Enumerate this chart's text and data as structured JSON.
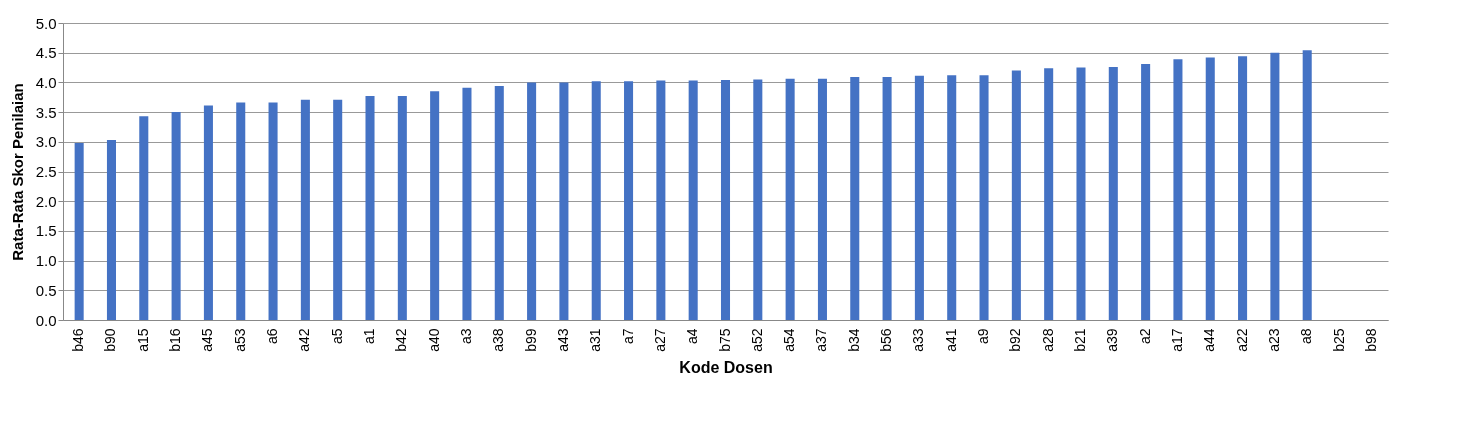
{
  "chart_data": {
    "type": "bar",
    "xlabel": "Kode Dosen",
    "ylabel": "Rata-Rata Skor Penilaian",
    "categories": [
      "b46",
      "b90",
      "a15",
      "b16",
      "a45",
      "a53",
      "a6",
      "a42",
      "a5",
      "a1",
      "b42",
      "a40",
      "a3",
      "a38",
      "b99",
      "a43",
      "a31",
      "a7",
      "a27",
      "a4",
      "b75",
      "a52",
      "a54",
      "a37",
      "b34",
      "b56",
      "a33",
      "a41",
      "a9",
      "b92",
      "a28",
      "b21",
      "a39",
      "a2",
      "a17",
      "a44",
      "a22",
      "a23",
      "a8",
      "b25",
      "b98"
    ],
    "values": [
      2.98,
      3.03,
      3.43,
      3.5,
      3.61,
      3.66,
      3.66,
      3.71,
      3.71,
      3.77,
      3.77,
      3.85,
      3.91,
      3.94,
      4.0,
      4.0,
      4.02,
      4.02,
      4.03,
      4.03,
      4.04,
      4.05,
      4.06,
      4.06,
      4.09,
      4.09,
      4.11,
      4.12,
      4.12,
      4.2,
      4.24,
      4.25,
      4.26,
      4.31,
      4.39,
      4.42,
      4.44,
      4.5,
      4.54,
      null,
      null
    ],
    "color": "#4472c4",
    "ylim": [
      0,
      5
    ],
    "yticks": [
      {
        "value": 0,
        "label": "0.0"
      },
      {
        "value": 0.5,
        "label": "0.5"
      },
      {
        "value": 1,
        "label": "1.0"
      },
      {
        "value": 1.5,
        "label": "1.5"
      },
      {
        "value": 2,
        "label": "2.0"
      },
      {
        "value": 2.5,
        "label": "2.5"
      },
      {
        "value": 3,
        "label": "3.0"
      },
      {
        "value": 3.5,
        "label": "3.5"
      },
      {
        "value": 4,
        "label": "4.0"
      },
      {
        "value": 4.5,
        "label": "4.5"
      },
      {
        "value": 5,
        "label": "5.0"
      }
    ],
    "grid": "y"
  }
}
